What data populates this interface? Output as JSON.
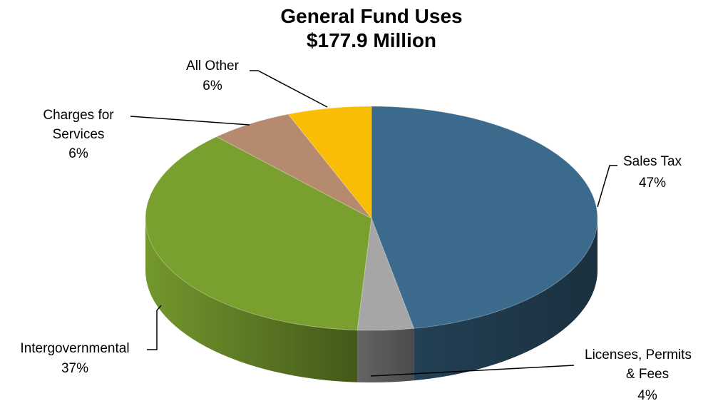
{
  "chart_data": {
    "type": "pie",
    "title": "General Fund Uses",
    "subtitle": "$177.9 Million",
    "slices": [
      {
        "label": "Sales Tax",
        "percent_label": "47%",
        "value": 47,
        "color": "#3b6a8c"
      },
      {
        "label": "Licenses, Permits & Fees",
        "percent_label": "4%",
        "value": 4,
        "color": "#a6a6a6"
      },
      {
        "label": "Intergovernmental",
        "percent_label": "37%",
        "value": 37,
        "color": "#79a02f"
      },
      {
        "label": "Charges for Services",
        "percent_label": "6%",
        "value": 6,
        "color": "#b58a6e"
      },
      {
        "label": "All Other",
        "percent_label": "6%",
        "value": 6,
        "color": "#fabd05"
      }
    ]
  }
}
